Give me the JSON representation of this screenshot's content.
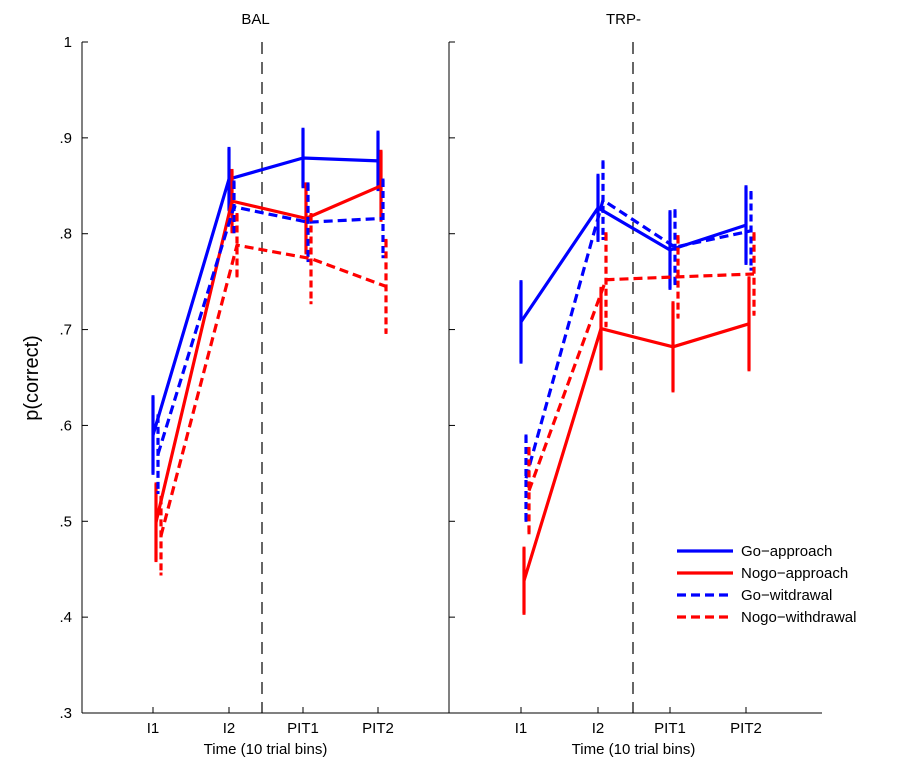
{
  "chart_data": {
    "type": "line",
    "ylabel": "p(correct)",
    "ylim": [
      0.3,
      1.0
    ],
    "yticks": [
      0.3,
      0.4,
      0.5,
      0.6,
      0.7,
      0.8,
      0.9,
      1.0
    ],
    "ytick_labels": [
      ".3",
      ".4",
      ".5",
      ".6",
      ".7",
      ".8",
      ".9",
      "1"
    ],
    "legend_position": "bottom-right",
    "series_styles": [
      {
        "name": "Go−approach",
        "color": "#0000ff",
        "dash": "solid"
      },
      {
        "name": "Nogo−approach",
        "color": "#ff0000",
        "dash": "solid"
      },
      {
        "name": "Go−witdrawal",
        "color": "#0000ff",
        "dash": "dashed"
      },
      {
        "name": "Nogo−withdrawal",
        "color": "#ff0000",
        "dash": "dashed"
      }
    ],
    "panels": [
      {
        "title": "BAL",
        "xlabel": "Time (10 trial bins)",
        "categories": [
          "I1",
          "I2",
          "PIT1",
          "PIT2"
        ],
        "series": [
          {
            "name": "Go−approach",
            "values": [
              0.59,
              0.857,
              0.879,
              0.876
            ],
            "errors": [
              0.04,
              0.032,
              0.03,
              0.03
            ]
          },
          {
            "name": "Nogo−approach",
            "values": [
              0.499,
              0.834,
              0.816,
              0.85
            ],
            "errors": [
              0.04,
              0.032,
              0.036,
              0.036
            ]
          },
          {
            "name": "Go−witdrawal",
            "values": [
              0.57,
              0.828,
              0.812,
              0.816
            ],
            "errors": [
              0.04,
              0.026,
              0.04,
              0.04
            ]
          },
          {
            "name": "Nogo−withdrawal",
            "values": [
              0.485,
              0.788,
              0.774,
              0.745
            ],
            "errors": [
              0.04,
              0.032,
              0.046,
              0.048
            ]
          }
        ]
      },
      {
        "title": "TRP-",
        "xlabel": "Time (10 trial bins)",
        "categories": [
          "I1",
          "I2",
          "PIT1",
          "PIT2"
        ],
        "series": [
          {
            "name": "Go−approach",
            "values": [
              0.708,
              0.827,
              0.783,
              0.809
            ],
            "errors": [
              0.042,
              0.034,
              0.04,
              0.04
            ]
          },
          {
            "name": "Nogo−approach",
            "values": [
              0.438,
              0.701,
              0.682,
              0.706
            ],
            "errors": [
              0.034,
              0.042,
              0.046,
              0.048
            ]
          },
          {
            "name": "Go−witdrawal",
            "values": [
              0.545,
              0.835,
              0.786,
              0.803
            ],
            "errors": [
              0.044,
              0.04,
              0.038,
              0.04
            ]
          },
          {
            "name": "Nogo−withdrawal",
            "values": [
              0.532,
              0.752,
              0.755,
              0.758
            ],
            "errors": [
              0.044,
              0.048,
              0.042,
              0.042
            ]
          }
        ]
      }
    ]
  }
}
